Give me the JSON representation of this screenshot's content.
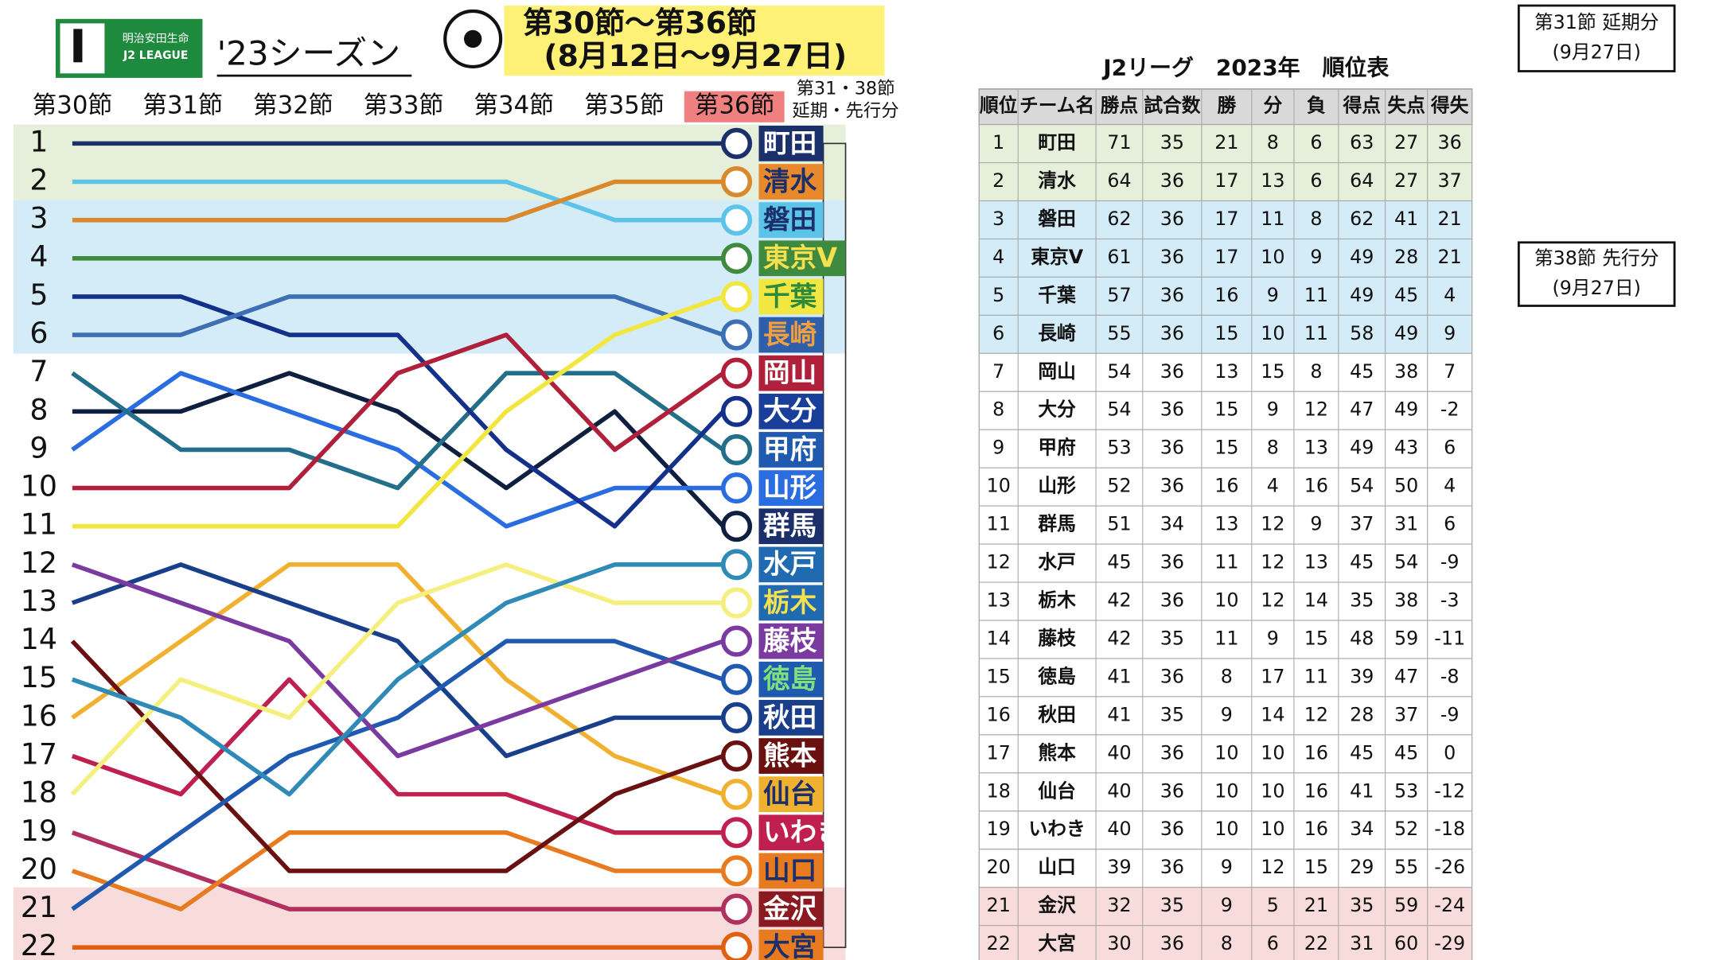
{
  "header": {
    "logo_top": "明治安田生命",
    "logo_bottom": "J2 LEAGUE",
    "season": "'23シーズン",
    "rounds": "第30節～第36節",
    "dates": "(8月12日～9月27日)",
    "box1": [
      "第31節 延期分",
      "(9月27日)"
    ],
    "box2": [
      "第38節 先行分",
      "(9月27日)"
    ]
  },
  "chart_data": {
    "type": "line",
    "categories": [
      "第30節",
      "第31節",
      "第32節",
      "第33節",
      "第34節",
      "第35節",
      "第36節"
    ],
    "note": [
      "第31・38節",
      "延期・先行分"
    ],
    "ylim": [
      1,
      22
    ],
    "y_inverted": true,
    "yticks": [
      1,
      2,
      3,
      4,
      5,
      6,
      7,
      8,
      9,
      10,
      11,
      12,
      13,
      14,
      15,
      16,
      17,
      18,
      19,
      20,
      21,
      22
    ],
    "series": [
      {
        "name": "町田",
        "color": "#1b2f6b",
        "values": [
          1,
          1,
          1,
          1,
          1,
          1,
          1
        ]
      },
      {
        "name": "清水",
        "color": "#d9892b",
        "values": [
          3,
          3,
          3,
          3,
          3,
          2,
          2
        ]
      },
      {
        "name": "磐田",
        "color": "#5bc4e8",
        "values": [
          2,
          2,
          2,
          2,
          2,
          3,
          3
        ]
      },
      {
        "name": "東京V",
        "color": "#3e8a3e",
        "values": [
          4,
          4,
          4,
          4,
          4,
          4,
          4
        ]
      },
      {
        "name": "千葉",
        "color": "#f2e640",
        "values": [
          11,
          11,
          11,
          11,
          8,
          6,
          5
        ]
      },
      {
        "name": "長崎",
        "color": "#3d6fb5",
        "values": [
          6,
          6,
          5,
          5,
          5,
          5,
          6
        ]
      },
      {
        "name": "岡山",
        "color": "#b0203a",
        "values": [
          10,
          10,
          10,
          7,
          6,
          9,
          7
        ]
      },
      {
        "name": "大分",
        "color": "#13308a",
        "values": [
          5,
          5,
          6,
          6,
          9,
          11,
          8
        ]
      },
      {
        "name": "甲府",
        "color": "#236f8a",
        "values": [
          7,
          9,
          9,
          10,
          7,
          7,
          9
        ]
      },
      {
        "name": "山形",
        "color": "#2a6de0",
        "values": [
          9,
          7,
          8,
          9,
          11,
          10,
          10
        ]
      },
      {
        "name": "群馬",
        "color": "#0f1f40",
        "values": [
          8,
          8,
          7,
          8,
          10,
          8,
          11
        ]
      },
      {
        "name": "水戸",
        "color": "#2f8ab8",
        "values": [
          15,
          16,
          18,
          15,
          13,
          12,
          12
        ]
      },
      {
        "name": "栃木",
        "color": "#f5ef80",
        "values": [
          18,
          15,
          16,
          13,
          12,
          13,
          13
        ]
      },
      {
        "name": "藤枝",
        "color": "#7b3aa0",
        "values": [
          12,
          13,
          14,
          17,
          16,
          15,
          14
        ]
      },
      {
        "name": "徳島",
        "color": "#1f5ab0",
        "values": [
          21,
          19,
          17,
          16,
          14,
          14,
          15
        ]
      },
      {
        "name": "秋田",
        "color": "#1a3f8a",
        "values": [
          13,
          12,
          13,
          14,
          17,
          16,
          16
        ]
      },
      {
        "name": "熊本",
        "color": "#6a1010",
        "values": [
          14,
          17,
          20,
          20,
          20,
          18,
          17
        ]
      },
      {
        "name": "仙台",
        "color": "#f0b030",
        "values": [
          16,
          14,
          12,
          12,
          15,
          17,
          18
        ]
      },
      {
        "name": "いわき",
        "color": "#c02050",
        "values": [
          17,
          18,
          15,
          18,
          18,
          19,
          19
        ]
      },
      {
        "name": "山口",
        "color": "#e87a20",
        "values": [
          20,
          21,
          19,
          19,
          19,
          20,
          20
        ]
      },
      {
        "name": "金沢",
        "color": "#b03060",
        "values": [
          19,
          20,
          21,
          21,
          21,
          21,
          21
        ]
      },
      {
        "name": "大宮",
        "color": "#e06010",
        "values": [
          22,
          22,
          22,
          22,
          22,
          22,
          22
        ]
      }
    ]
  },
  "table": {
    "title": "J2リーグ　2023年　順位表",
    "columns": [
      "順位",
      "チーム名",
      "勝点",
      "試合数",
      "勝",
      "分",
      "負",
      "得点",
      "失点",
      "得失"
    ],
    "rows": [
      [
        1,
        "町田",
        71,
        35,
        21,
        8,
        6,
        63,
        27,
        36
      ],
      [
        2,
        "清水",
        64,
        36,
        17,
        13,
        6,
        64,
        27,
        37
      ],
      [
        3,
        "磐田",
        62,
        36,
        17,
        11,
        8,
        62,
        41,
        21
      ],
      [
        4,
        "東京V",
        61,
        36,
        17,
        10,
        9,
        49,
        28,
        21
      ],
      [
        5,
        "千葉",
        57,
        36,
        16,
        9,
        11,
        49,
        45,
        4
      ],
      [
        6,
        "長崎",
        55,
        36,
        15,
        10,
        11,
        58,
        49,
        9
      ],
      [
        7,
        "岡山",
        54,
        36,
        13,
        15,
        8,
        45,
        38,
        7
      ],
      [
        8,
        "大分",
        54,
        36,
        15,
        9,
        12,
        47,
        49,
        -2
      ],
      [
        9,
        "甲府",
        53,
        36,
        15,
        8,
        13,
        49,
        43,
        6
      ],
      [
        10,
        "山形",
        52,
        36,
        16,
        4,
        16,
        54,
        50,
        4
      ],
      [
        11,
        "群馬",
        51,
        34,
        13,
        12,
        9,
        37,
        31,
        6
      ],
      [
        12,
        "水戸",
        45,
        36,
        11,
        12,
        13,
        45,
        54,
        -9
      ],
      [
        13,
        "栃木",
        42,
        36,
        10,
        12,
        14,
        35,
        38,
        -3
      ],
      [
        14,
        "藤枝",
        42,
        35,
        11,
        9,
        15,
        48,
        59,
        -11
      ],
      [
        15,
        "徳島",
        41,
        36,
        8,
        17,
        11,
        39,
        47,
        -8
      ],
      [
        16,
        "秋田",
        41,
        35,
        9,
        14,
        12,
        28,
        37,
        -9
      ],
      [
        17,
        "熊本",
        40,
        36,
        10,
        10,
        16,
        45,
        45,
        0
      ],
      [
        18,
        "仙台",
        40,
        36,
        10,
        10,
        16,
        41,
        53,
        -12
      ],
      [
        19,
        "いわき",
        40,
        36,
        10,
        10,
        16,
        34,
        52,
        -18
      ],
      [
        20,
        "山口",
        39,
        36,
        9,
        12,
        15,
        29,
        55,
        -26
      ],
      [
        21,
        "金沢",
        32,
        35,
        9,
        5,
        21,
        35,
        59,
        -24
      ],
      [
        22,
        "大宮",
        30,
        36,
        8,
        6,
        22,
        31,
        60,
        -29
      ]
    ]
  }
}
